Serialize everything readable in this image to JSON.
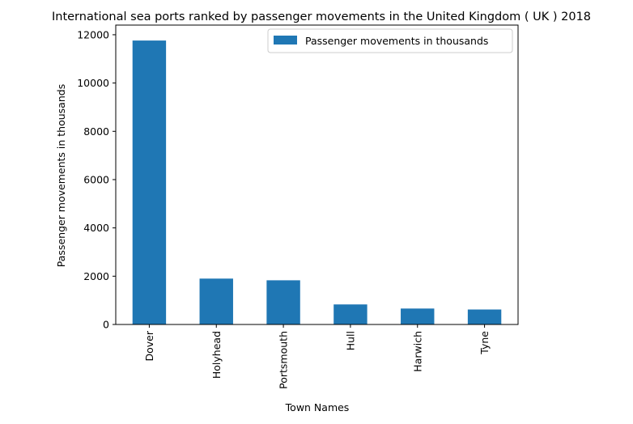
{
  "chart_data": {
    "type": "bar",
    "title": "International sea ports ranked by passenger movements in the United Kingdom ( UK ) 2018",
    "xlabel": "Town Names",
    "ylabel": "Passenger movements in thousands",
    "categories": [
      "Dover",
      "Holyhead",
      "Portsmouth",
      "Hull",
      "Harwich",
      "Tyne"
    ],
    "series": [
      {
        "name": "Passenger movements in thousands",
        "values": [
          11760,
          1900,
          1830,
          830,
          660,
          620
        ],
        "color": "#1f77b4"
      }
    ],
    "ylim": [
      0,
      12400
    ],
    "yticks": [
      0,
      2000,
      4000,
      6000,
      8000,
      10000,
      12000
    ],
    "grid": false,
    "legend_position": "top-right"
  }
}
